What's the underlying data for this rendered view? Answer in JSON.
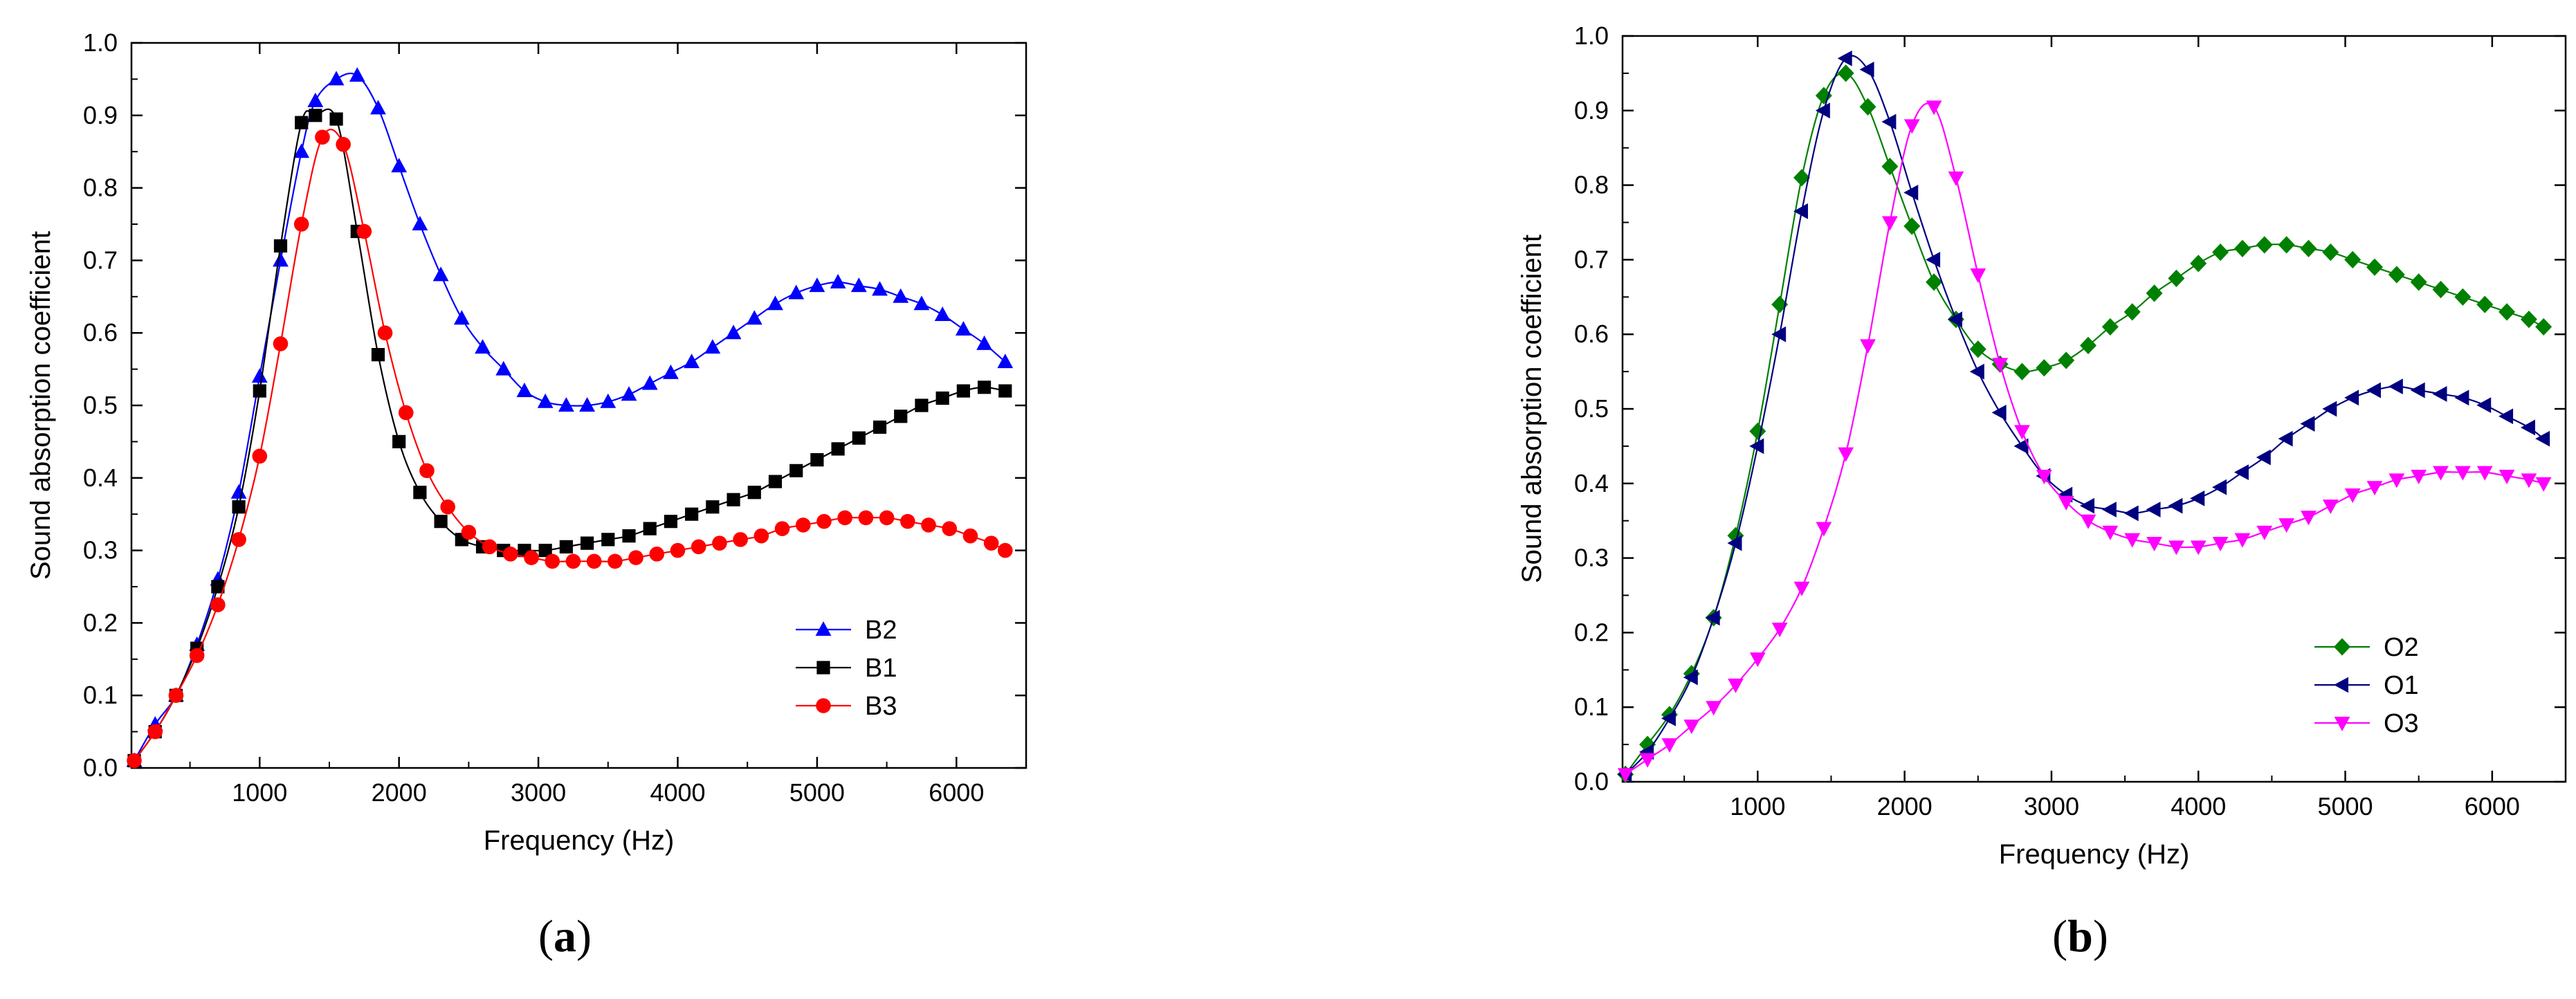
{
  "chart_data": [
    {
      "type": "scatter",
      "panel_label": "a",
      "xlabel": "Frequency (Hz)",
      "ylabel": "Sound absorption coefficient",
      "xlim": [
        80,
        6500
      ],
      "ylim": [
        0,
        1.0
      ],
      "xticks": [
        1000,
        2000,
        3000,
        4000,
        5000,
        6000
      ],
      "yticks": [
        0.0,
        0.1,
        0.2,
        0.3,
        0.4,
        0.5,
        0.6,
        0.7,
        0.8,
        0.9,
        1.0
      ],
      "legend_position": "bottom-right",
      "series": [
        {
          "name": "B2",
          "color": "#0000ff",
          "marker": "triangle-up",
          "x": [
            100,
            250,
            400,
            550,
            700,
            850,
            1000,
            1150,
            1300,
            1400,
            1550,
            1700,
            1850,
            2000,
            2150,
            2300,
            2450,
            2600,
            2750,
            2900,
            3050,
            3200,
            3350,
            3500,
            3650,
            3800,
            3950,
            4100,
            4250,
            4400,
            4550,
            4700,
            4850,
            5000,
            5150,
            5300,
            5450,
            5600,
            5750,
            5900,
            6050,
            6200,
            6350
          ],
          "y": [
            0.01,
            0.06,
            0.1,
            0.17,
            0.26,
            0.38,
            0.54,
            0.7,
            0.85,
            0.92,
            0.95,
            0.955,
            0.91,
            0.83,
            0.75,
            0.68,
            0.62,
            0.58,
            0.55,
            0.52,
            0.505,
            0.5,
            0.5,
            0.505,
            0.515,
            0.53,
            0.545,
            0.56,
            0.58,
            0.6,
            0.62,
            0.64,
            0.655,
            0.665,
            0.67,
            0.665,
            0.66,
            0.65,
            0.64,
            0.625,
            0.605,
            0.585,
            0.56
          ]
        },
        {
          "name": "B1",
          "color": "#000000",
          "marker": "square",
          "x": [
            100,
            250,
            400,
            550,
            700,
            850,
            1000,
            1150,
            1300,
            1400,
            1550,
            1700,
            1850,
            2000,
            2150,
            2300,
            2450,
            2600,
            2750,
            2900,
            3050,
            3200,
            3350,
            3500,
            3650,
            3800,
            3950,
            4100,
            4250,
            4400,
            4550,
            4700,
            4850,
            5000,
            5150,
            5300,
            5450,
            5600,
            5750,
            5900,
            6050,
            6200,
            6350
          ],
          "y": [
            0.01,
            0.05,
            0.1,
            0.165,
            0.25,
            0.36,
            0.52,
            0.72,
            0.89,
            0.9,
            0.895,
            0.74,
            0.57,
            0.45,
            0.38,
            0.34,
            0.315,
            0.305,
            0.3,
            0.3,
            0.3,
            0.305,
            0.31,
            0.315,
            0.32,
            0.33,
            0.34,
            0.35,
            0.36,
            0.37,
            0.38,
            0.395,
            0.41,
            0.425,
            0.44,
            0.455,
            0.47,
            0.485,
            0.5,
            0.51,
            0.52,
            0.525,
            0.52
          ]
        },
        {
          "name": "B3",
          "color": "#ff0000",
          "marker": "circle",
          "x": [
            100,
            250,
            400,
            550,
            700,
            850,
            1000,
            1150,
            1300,
            1450,
            1600,
            1750,
            1900,
            2050,
            2200,
            2350,
            2500,
            2650,
            2800,
            2950,
            3100,
            3250,
            3400,
            3550,
            3700,
            3850,
            4000,
            4150,
            4300,
            4450,
            4600,
            4750,
            4900,
            5050,
            5200,
            5350,
            5500,
            5650,
            5800,
            5950,
            6100,
            6250,
            6350
          ],
          "y": [
            0.01,
            0.05,
            0.1,
            0.155,
            0.225,
            0.315,
            0.43,
            0.585,
            0.75,
            0.87,
            0.86,
            0.74,
            0.6,
            0.49,
            0.41,
            0.36,
            0.325,
            0.305,
            0.295,
            0.29,
            0.285,
            0.285,
            0.285,
            0.285,
            0.29,
            0.295,
            0.3,
            0.305,
            0.31,
            0.315,
            0.32,
            0.33,
            0.335,
            0.34,
            0.345,
            0.345,
            0.345,
            0.34,
            0.335,
            0.33,
            0.32,
            0.31,
            0.3
          ]
        }
      ]
    },
    {
      "type": "scatter",
      "panel_label": "b",
      "xlabel": "Frequency (Hz)",
      "ylabel": "Sound absorption coefficient",
      "xlim": [
        80,
        6500
      ],
      "ylim": [
        0,
        1.0
      ],
      "xticks": [
        1000,
        2000,
        3000,
        4000,
        5000,
        6000
      ],
      "yticks": [
        0.0,
        0.1,
        0.2,
        0.3,
        0.4,
        0.5,
        0.6,
        0.7,
        0.8,
        0.9,
        1.0
      ],
      "legend_position": "bottom-right",
      "series": [
        {
          "name": "O2",
          "color": "#008000",
          "marker": "diamond",
          "x": [
            100,
            250,
            400,
            550,
            700,
            850,
            1000,
            1150,
            1300,
            1450,
            1600,
            1750,
            1900,
            2050,
            2200,
            2350,
            2500,
            2650,
            2800,
            2950,
            3100,
            3250,
            3400,
            3550,
            3700,
            3850,
            4000,
            4150,
            4300,
            4450,
            4600,
            4750,
            4900,
            5050,
            5200,
            5350,
            5500,
            5650,
            5800,
            5950,
            6100,
            6250,
            6350
          ],
          "y": [
            0.01,
            0.05,
            0.09,
            0.145,
            0.22,
            0.33,
            0.47,
            0.64,
            0.81,
            0.92,
            0.95,
            0.905,
            0.825,
            0.745,
            0.67,
            0.62,
            0.58,
            0.56,
            0.55,
            0.555,
            0.565,
            0.585,
            0.61,
            0.63,
            0.655,
            0.675,
            0.695,
            0.71,
            0.715,
            0.72,
            0.72,
            0.715,
            0.71,
            0.7,
            0.69,
            0.68,
            0.67,
            0.66,
            0.65,
            0.64,
            0.63,
            0.62,
            0.61
          ]
        },
        {
          "name": "O1",
          "color": "#000080",
          "marker": "triangle-left",
          "x": [
            100,
            250,
            400,
            550,
            700,
            850,
            1000,
            1150,
            1300,
            1450,
            1600,
            1750,
            1900,
            2050,
            2200,
            2350,
            2500,
            2650,
            2800,
            2950,
            3100,
            3250,
            3400,
            3550,
            3700,
            3850,
            4000,
            4150,
            4300,
            4450,
            4600,
            4750,
            4900,
            5050,
            5200,
            5350,
            5500,
            5650,
            5800,
            5950,
            6100,
            6250,
            6350
          ],
          "y": [
            0.01,
            0.04,
            0.085,
            0.14,
            0.22,
            0.32,
            0.45,
            0.6,
            0.765,
            0.9,
            0.97,
            0.955,
            0.885,
            0.79,
            0.7,
            0.62,
            0.55,
            0.495,
            0.45,
            0.41,
            0.385,
            0.37,
            0.365,
            0.36,
            0.365,
            0.37,
            0.38,
            0.395,
            0.415,
            0.435,
            0.46,
            0.48,
            0.5,
            0.515,
            0.525,
            0.53,
            0.525,
            0.52,
            0.515,
            0.505,
            0.49,
            0.475,
            0.46
          ]
        },
        {
          "name": "O3",
          "color": "#ff00ff",
          "marker": "triangle-down",
          "x": [
            100,
            250,
            400,
            550,
            700,
            850,
            1000,
            1150,
            1300,
            1450,
            1600,
            1750,
            1900,
            2050,
            2200,
            2350,
            2500,
            2650,
            2800,
            2950,
            3100,
            3250,
            3400,
            3550,
            3700,
            3850,
            4000,
            4150,
            4300,
            4450,
            4600,
            4750,
            4900,
            5050,
            5200,
            5350,
            5500,
            5650,
            5800,
            5950,
            6100,
            6250,
            6350
          ],
          "y": [
            0.01,
            0.03,
            0.05,
            0.075,
            0.1,
            0.13,
            0.165,
            0.205,
            0.26,
            0.34,
            0.44,
            0.585,
            0.75,
            0.88,
            0.905,
            0.81,
            0.68,
            0.56,
            0.47,
            0.41,
            0.375,
            0.35,
            0.335,
            0.325,
            0.32,
            0.315,
            0.315,
            0.32,
            0.325,
            0.335,
            0.345,
            0.355,
            0.37,
            0.385,
            0.395,
            0.405,
            0.41,
            0.415,
            0.415,
            0.415,
            0.41,
            0.405,
            0.4
          ]
        }
      ]
    }
  ]
}
